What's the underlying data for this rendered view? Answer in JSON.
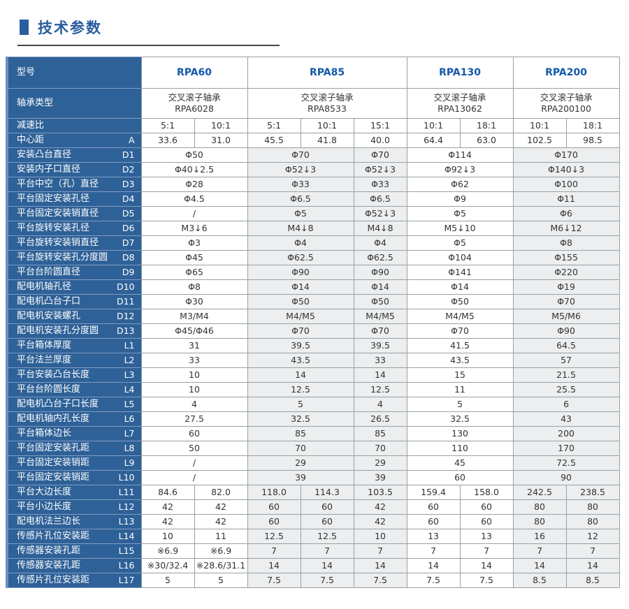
{
  "page_title": {
    "text": "技术参数"
  },
  "colors": {
    "label_blue": "#2E6197",
    "model_text_blue": "#1558AD",
    "title_blue": "#2A5D9E",
    "stripe_gray": "#ECEEEF",
    "grid_gray": "#99A0A4"
  },
  "table": {
    "label_header": "型号",
    "models": [
      {
        "name": "RPA60",
        "subcols": 2
      },
      {
        "name": "RPA85",
        "subcols": 3
      },
      {
        "name": "RPA130",
        "subcols": 2
      },
      {
        "name": "RPA200",
        "subcols": 2
      }
    ],
    "rows": [
      {
        "label": "轴承类型",
        "code": "",
        "cells": [
          {
            "t": "交叉滚子轴承\nRPA6028",
            "s": 2
          },
          {
            "t": "交叉滚子轴承\nRPA8533",
            "s": 3
          },
          {
            "t": "交叉滚子轴承\nRPA13062",
            "s": 2
          },
          {
            "t": "交叉滚子轴承\nRPA200100",
            "s": 2
          }
        ]
      },
      {
        "label": "减速比",
        "code": "",
        "cells": [
          "5:1",
          "10:1",
          "5:1",
          "10:1",
          "15:1",
          "10:1",
          "18:1",
          "10:1",
          "18:1"
        ]
      },
      {
        "label": "中心距",
        "code": "A",
        "cells": [
          "33.6",
          "31.0",
          "45.5",
          "41.8",
          "40.0",
          "64.4",
          "63.0",
          "102.5",
          "98.5"
        ]
      },
      {
        "label": "安装凸台直径",
        "code": "D1",
        "cells": [
          {
            "t": "Φ50",
            "s": 2
          },
          {
            "t": "Φ70",
            "s": 2
          },
          "Φ70",
          {
            "t": "Φ114",
            "s": 2
          },
          {
            "t": "Φ170",
            "s": 2
          }
        ]
      },
      {
        "label": "安装内子口直径",
        "code": "D2",
        "cells": [
          {
            "t": "Φ40↓2.5",
            "s": 2
          },
          {
            "t": "Φ52↓3",
            "s": 2
          },
          "Φ52↓3",
          {
            "t": "Φ92↓3",
            "s": 2
          },
          {
            "t": "Φ140↓3",
            "s": 2
          }
        ]
      },
      {
        "label": "平台中空（孔）直径",
        "code": "D3",
        "cells": [
          {
            "t": "Φ28",
            "s": 2
          },
          {
            "t": "Φ33",
            "s": 2
          },
          "Φ33",
          {
            "t": "Φ62",
            "s": 2
          },
          {
            "t": "Φ100",
            "s": 2
          }
        ]
      },
      {
        "label": "平台固定安装孔径",
        "code": "D4",
        "cells": [
          {
            "t": "Φ4.5",
            "s": 2
          },
          {
            "t": "Φ6.5",
            "s": 2
          },
          "Φ6.5",
          {
            "t": "Φ9",
            "s": 2
          },
          {
            "t": "Φ11",
            "s": 2
          }
        ]
      },
      {
        "label": "平台固定安装销直径",
        "code": "D5",
        "cells": [
          {
            "t": "/",
            "s": 2
          },
          {
            "t": "Φ5",
            "s": 2
          },
          "Φ52↓3",
          {
            "t": "Φ5",
            "s": 2
          },
          {
            "t": "Φ6",
            "s": 2
          }
        ]
      },
      {
        "label": "平台旋转安装孔径",
        "code": "D6",
        "cells": [
          {
            "t": "M3↓6",
            "s": 2
          },
          {
            "t": "M4↓8",
            "s": 2
          },
          "M4↓8",
          {
            "t": "M5↓10",
            "s": 2
          },
          {
            "t": "M6↓12",
            "s": 2
          }
        ]
      },
      {
        "label": "平台旋转安装销直径",
        "code": "D7",
        "cells": [
          {
            "t": "Φ3",
            "s": 2
          },
          {
            "t": "Φ4",
            "s": 2
          },
          "Φ4",
          {
            "t": "Φ5",
            "s": 2
          },
          {
            "t": "Φ8",
            "s": 2
          }
        ]
      },
      {
        "label": "平台旋转安装孔分度圆",
        "code": "D8",
        "cells": [
          {
            "t": "Φ45",
            "s": 2
          },
          {
            "t": "Φ62.5",
            "s": 2
          },
          "Φ62.5",
          {
            "t": "Φ104",
            "s": 2
          },
          {
            "t": "Φ155",
            "s": 2
          }
        ]
      },
      {
        "label": "平台台阶圆直径",
        "code": "D9",
        "cells": [
          {
            "t": "Φ65",
            "s": 2
          },
          {
            "t": "Φ90",
            "s": 2
          },
          "Φ90",
          {
            "t": "Φ141",
            "s": 2
          },
          {
            "t": "Φ220",
            "s": 2
          }
        ]
      },
      {
        "label": "配电机轴孔径",
        "code": "D10",
        "cells": [
          {
            "t": "Φ8",
            "s": 2
          },
          {
            "t": "Φ14",
            "s": 2
          },
          "Φ14",
          {
            "t": "Φ14",
            "s": 2
          },
          {
            "t": "Φ19",
            "s": 2
          }
        ]
      },
      {
        "label": "配电机凸台子口",
        "code": "D11",
        "cells": [
          {
            "t": "Φ30",
            "s": 2
          },
          {
            "t": "Φ50",
            "s": 2
          },
          "Φ50",
          {
            "t": "Φ50",
            "s": 2
          },
          {
            "t": "Φ70",
            "s": 2
          }
        ]
      },
      {
        "label": "配电机安装螺孔",
        "code": "D12",
        "cells": [
          {
            "t": "M3/M4",
            "s": 2
          },
          {
            "t": "M4/M5",
            "s": 2
          },
          "M4/M5",
          {
            "t": "M4/M5",
            "s": 2
          },
          {
            "t": "M5/M6",
            "s": 2
          }
        ]
      },
      {
        "label": "配电机安装孔分度圆",
        "code": "D13",
        "cells": [
          {
            "t": "Φ45/Φ46",
            "s": 2
          },
          {
            "t": "Φ70",
            "s": 2
          },
          "Φ70",
          {
            "t": "Φ70",
            "s": 2
          },
          {
            "t": "Φ90",
            "s": 2
          }
        ]
      },
      {
        "label": "平台箱体厚度",
        "code": "L1",
        "cells": [
          {
            "t": "31",
            "s": 2
          },
          {
            "t": "39.5",
            "s": 2
          },
          "39.5",
          {
            "t": "41.5",
            "s": 2
          },
          {
            "t": "64.5",
            "s": 2
          }
        ]
      },
      {
        "label": "平台法兰厚度",
        "code": "L2",
        "cells": [
          {
            "t": "33",
            "s": 2
          },
          {
            "t": "43.5",
            "s": 2
          },
          "33",
          {
            "t": "43.5",
            "s": 2
          },
          {
            "t": "57",
            "s": 2
          }
        ]
      },
      {
        "label": "平台安装凸台长度",
        "code": "L3",
        "cells": [
          {
            "t": "10",
            "s": 2
          },
          {
            "t": "14",
            "s": 2
          },
          "14",
          {
            "t": "15",
            "s": 2
          },
          {
            "t": "21.5",
            "s": 2
          }
        ]
      },
      {
        "label": "平台台阶圆长度",
        "code": "L4",
        "cells": [
          {
            "t": "10",
            "s": 2
          },
          {
            "t": "12.5",
            "s": 2
          },
          "12.5",
          {
            "t": "11",
            "s": 2
          },
          {
            "t": "25.5",
            "s": 2
          }
        ]
      },
      {
        "label": "配电机凸台子口长度",
        "code": "L5",
        "cells": [
          {
            "t": "4",
            "s": 2
          },
          {
            "t": "5",
            "s": 2
          },
          "4",
          {
            "t": "5",
            "s": 2
          },
          {
            "t": "6",
            "s": 2
          }
        ]
      },
      {
        "label": "配电机轴内孔长度",
        "code": "L6",
        "cells": [
          {
            "t": "27.5",
            "s": 2
          },
          {
            "t": "32.5",
            "s": 2
          },
          "26.5",
          {
            "t": "32.5",
            "s": 2
          },
          {
            "t": "43",
            "s": 2
          }
        ]
      },
      {
        "label": "平台箱体边长",
        "code": "L7",
        "cells": [
          {
            "t": "60",
            "s": 2
          },
          {
            "t": "85",
            "s": 2
          },
          "85",
          {
            "t": "130",
            "s": 2
          },
          {
            "t": "200",
            "s": 2
          }
        ]
      },
      {
        "label": "平台固定安装孔距",
        "code": "L8",
        "cells": [
          {
            "t": "50",
            "s": 2
          },
          {
            "t": "70",
            "s": 2
          },
          "70",
          {
            "t": "110",
            "s": 2
          },
          {
            "t": "170",
            "s": 2
          }
        ]
      },
      {
        "label": "平台固定安装销距",
        "code": "L9",
        "cells": [
          {
            "t": "/",
            "s": 2
          },
          {
            "t": "29",
            "s": 2
          },
          "29",
          {
            "t": "45",
            "s": 2
          },
          {
            "t": "72.5",
            "s": 2
          }
        ]
      },
      {
        "label": "平台固定安装销距",
        "code": "L10",
        "cells": [
          {
            "t": "/",
            "s": 2
          },
          {
            "t": "39",
            "s": 2
          },
          "39",
          {
            "t": "60",
            "s": 2
          },
          {
            "t": "90",
            "s": 2
          }
        ]
      },
      {
        "label": "平台大边长度",
        "code": "L11",
        "cells": [
          "84.6",
          "82.0",
          "118.0",
          "114.3",
          "103.5",
          "159.4",
          "158.0",
          "242.5",
          "238.5"
        ]
      },
      {
        "label": "平台小边长度",
        "code": "L12",
        "cells": [
          "42",
          "42",
          "60",
          "60",
          "42",
          "60",
          "60",
          "80",
          "80"
        ]
      },
      {
        "label": "配电机法兰边长",
        "code": "L13",
        "cells": [
          "42",
          "42",
          "60",
          "60",
          "42",
          "60",
          "60",
          "80",
          "80"
        ]
      },
      {
        "label": "传感片孔位安装距",
        "code": "L14",
        "cells": [
          "10",
          "11",
          "12.5",
          "12.5",
          "10",
          "13",
          "13",
          "16",
          "12"
        ]
      },
      {
        "label": "传感器安装孔距",
        "code": "L15",
        "cells": [
          "※6.9",
          "※6.9",
          "7",
          "7",
          "7",
          "7",
          "7",
          "7",
          "7"
        ]
      },
      {
        "label": "传感器安装孔距",
        "code": "L16",
        "cells": [
          "※30/32.4",
          "※28.6/31.1",
          "14",
          "14",
          "14",
          "14",
          "14",
          "14",
          "14"
        ]
      },
      {
        "label": "传感片孔位安装距",
        "code": "L17",
        "cells": [
          "5",
          "5",
          "7.5",
          "7.5",
          "7.5",
          "7.5",
          "7.5",
          "8.5",
          "8.5"
        ]
      }
    ]
  }
}
